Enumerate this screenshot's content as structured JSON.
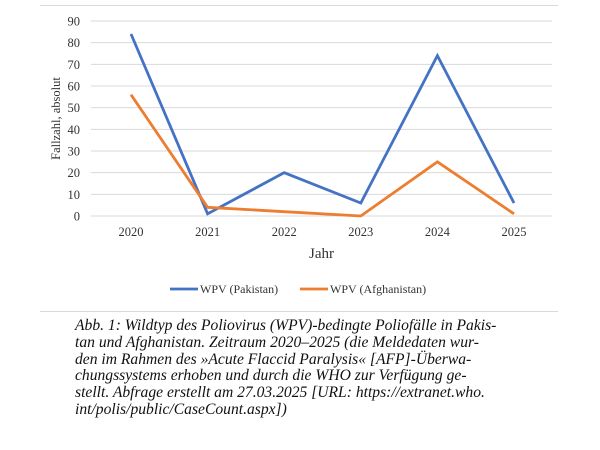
{
  "chart_data": {
    "type": "line",
    "title": "",
    "xlabel": "Jahr",
    "ylabel": "Fallzahl, absolut",
    "categories": [
      "2020",
      "2021",
      "2022",
      "2023",
      "2024",
      "2025"
    ],
    "ylim": [
      0,
      90
    ],
    "yticks": [
      "0",
      "10",
      "20",
      "30",
      "40",
      "50",
      "60",
      "70",
      "80",
      "90"
    ],
    "grid": true,
    "legend": "bottom",
    "series": [
      {
        "name": "WPV (Pakistan)",
        "color": "#4472c4",
        "values": [
          84,
          1,
          20,
          6,
          74,
          6
        ]
      },
      {
        "name": "WPV (Afghanistan)",
        "color": "#ed7d31",
        "values": [
          56,
          4,
          2,
          0,
          25,
          1
        ]
      }
    ]
  },
  "caption": {
    "lines": [
      "Abb. 1: Wildtyp des Poliovirus (WPV)-bedingte Poliofälle in Pakis-",
      "tan und Afghanistan. Zeitraum 2020–2025 (die Meldedaten wur-",
      "den im Rahmen des »Acute Flaccid Paralysis« [AFP]-Überwa-",
      "chungssystems erhoben und durch die WHO zur Verfügung ge-",
      "stellt. Abfrage erstellt am 27.03.2025 [URL: https://extranet.who.",
      "int/polis/public/CaseCount.aspx])"
    ]
  }
}
